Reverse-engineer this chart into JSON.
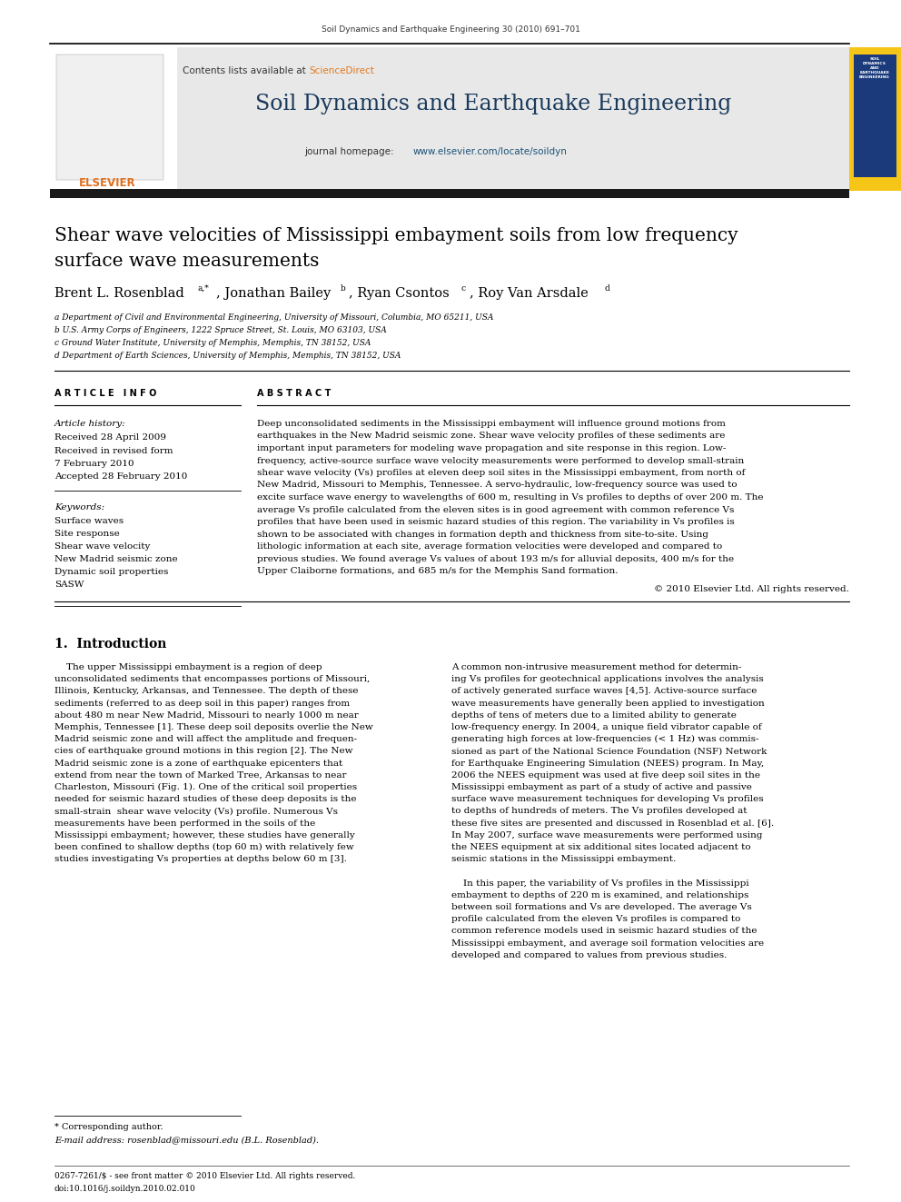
{
  "page_width": 9.92,
  "page_height": 13.23,
  "background_color": "#ffffff",
  "journal_header_text": "Soil Dynamics and Earthquake Engineering 30 (2010) 691–701",
  "journal_name": "Soil Dynamics and Earthquake Engineering",
  "contents_line": "Contents lists available at ScienceDirect",
  "journal_homepage": "journal homepage: www.elsevier.com/locate/soildyn",
  "paper_title_line1": "Shear wave velocities of Mississippi embayment soils from low frequency",
  "paper_title_line2": "surface wave measurements",
  "authors_main": "Brent L. Rosenblad",
  "authors_sup1": "a,*",
  "authors_mid1": ", Jonathan Bailey",
  "authors_sup2": "b",
  "authors_mid2": ", Ryan Csontos",
  "authors_sup3": "c",
  "authors_mid3": ", Roy Van Arsdale",
  "authors_sup4": "d",
  "affil_a": "a Department of Civil and Environmental Engineering, University of Missouri, Columbia, MO 65211, USA",
  "affil_b": "b U.S. Army Corps of Engineers, 1222 Spruce Street, St. Louis, MO 63103, USA",
  "affil_c": "c Ground Water Institute, University of Memphis, Memphis, TN 38152, USA",
  "affil_d": "d Department of Earth Sciences, University of Memphis, Memphis, TN 38152, USA",
  "article_info_label": "A R T I C L E   I N F O",
  "abstract_label": "A B S T R A C T",
  "article_history_label": "Article history:",
  "received_line": "Received 28 April 2009",
  "revised_line": "Received in revised form",
  "revised_date": "7 February 2010",
  "accepted_line": "Accepted 28 February 2010",
  "keywords_label": "Keywords:",
  "keywords": [
    "Surface waves",
    "Site response",
    "Shear wave velocity",
    "New Madrid seismic zone",
    "Dynamic soil properties",
    "SASW"
  ],
  "copyright_line": "© 2010 Elsevier Ltd. All rights reserved.",
  "section1_title": "1.  Introduction",
  "footnote_star": "* Corresponding author.",
  "footnote_email": "E-mail address: rosenblad@missouri.edu (B.L. Rosenblad).",
  "footer_line1": "0267-7261/$ - see front matter © 2010 Elsevier Ltd. All rights reserved.",
  "footer_line2": "doi:10.1016/j.soildyn.2010.02.010",
  "header_bg_color": "#e8e8e8",
  "black_bar_color": "#1a1a1a",
  "blue_link_color": "#1a5276",
  "dark_blue_journal_color": "#1a3a5c",
  "sci_direct_color": "#e07820",
  "orange_elsevier_color": "#e07020",
  "abstract_lines": [
    "Deep unconsolidated sediments in the Mississippi embayment will influence ground motions from",
    "earthquakes in the New Madrid seismic zone. Shear wave velocity profiles of these sediments are",
    "important input parameters for modeling wave propagation and site response in this region. Low-",
    "frequency, active-source surface wave velocity measurements were performed to develop small-strain",
    "shear wave velocity (Vs) profiles at eleven deep soil sites in the Mississippi embayment, from north of",
    "New Madrid, Missouri to Memphis, Tennessee. A servo-hydraulic, low-frequency source was used to",
    "excite surface wave energy to wavelengths of 600 m, resulting in Vs profiles to depths of over 200 m. The",
    "average Vs profile calculated from the eleven sites is in good agreement with common reference Vs",
    "profiles that have been used in seismic hazard studies of this region. The variability in Vs profiles is",
    "shown to be associated with changes in formation depth and thickness from site-to-site. Using",
    "lithologic information at each site, average formation velocities were developed and compared to",
    "previous studies. We found average Vs values of about 193 m/s for alluvial deposits, 400 m/s for the",
    "Upper Claiborne formations, and 685 m/s for the Memphis Sand formation."
  ],
  "intro_col1_lines": [
    "    The upper Mississippi embayment is a region of deep",
    "unconsolidated sediments that encompasses portions of Missouri,",
    "Illinois, Kentucky, Arkansas, and Tennessee. The depth of these",
    "sediments (referred to as deep soil in this paper) ranges from",
    "about 480 m near New Madrid, Missouri to nearly 1000 m near",
    "Memphis, Tennessee [1]. These deep soil deposits overlie the New",
    "Madrid seismic zone and will affect the amplitude and frequen-",
    "cies of earthquake ground motions in this region [2]. The New",
    "Madrid seismic zone is a zone of earthquake epicenters that",
    "extend from near the town of Marked Tree, Arkansas to near",
    "Charleston, Missouri (Fig. 1). One of the critical soil properties",
    "needed for seismic hazard studies of these deep deposits is the",
    "small-strain  shear wave velocity (Vs) profile. Numerous Vs",
    "measurements have been performed in the soils of the",
    "Mississippi embayment; however, these studies have generally",
    "been confined to shallow depths (top 60 m) with relatively few",
    "studies investigating Vs properties at depths below 60 m [3]."
  ],
  "intro_col2_lines": [
    "A common non-intrusive measurement method for determin-",
    "ing Vs profiles for geotechnical applications involves the analysis",
    "of actively generated surface waves [4,5]. Active-source surface",
    "wave measurements have generally been applied to investigation",
    "depths of tens of meters due to a limited ability to generate",
    "low-frequency energy. In 2004, a unique field vibrator capable of",
    "generating high forces at low-frequencies (< 1 Hz) was commis-",
    "sioned as part of the National Science Foundation (NSF) Network",
    "for Earthquake Engineering Simulation (NEES) program. In May,",
    "2006 the NEES equipment was used at five deep soil sites in the",
    "Mississippi embayment as part of a study of active and passive",
    "surface wave measurement techniques for developing Vs profiles",
    "to depths of hundreds of meters. The Vs profiles developed at",
    "these five sites are presented and discussed in Rosenblad et al. [6].",
    "In May 2007, surface wave measurements were performed using",
    "the NEES equipment at six additional sites located adjacent to",
    "seismic stations in the Mississippi embayment.",
    "",
    "    In this paper, the variability of Vs profiles in the Mississippi",
    "embayment to depths of 220 m is examined, and relationships",
    "between soil formations and Vs are developed. The average Vs",
    "profile calculated from the eleven Vs profiles is compared to",
    "common reference models used in seismic hazard studies of the",
    "Mississippi embayment, and average soil formation velocities are",
    "developed and compared to values from previous studies."
  ]
}
